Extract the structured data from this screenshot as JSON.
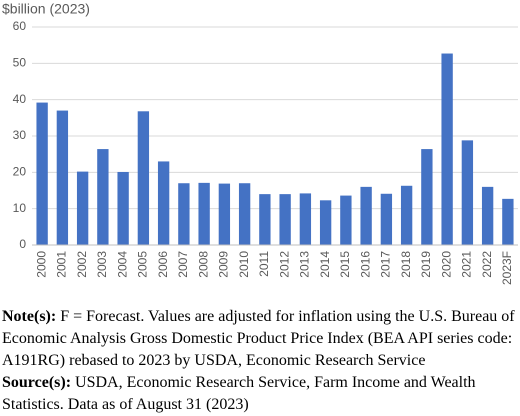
{
  "chart_data": {
    "type": "bar",
    "y_label": "$billion (2023)",
    "categories": [
      "2000",
      "2001",
      "2002",
      "2003",
      "2004",
      "2005",
      "2006",
      "2007",
      "2008",
      "2009",
      "2010",
      "2011",
      "2012",
      "2013",
      "2014",
      "2015",
      "2016",
      "2017",
      "2018",
      "2019",
      "2020",
      "2021",
      "2022",
      "2023F"
    ],
    "values": [
      39.2,
      37,
      20.2,
      26.4,
      20.1,
      36.8,
      23,
      17,
      17.1,
      16.9,
      17,
      14,
      14,
      14.2,
      12.3,
      13.6,
      16,
      14.1,
      16.3,
      26.4,
      52.7,
      28.8,
      16,
      12.7
    ],
    "color": "#4472c4",
    "ylim": [
      0,
      60
    ],
    "yticks": [
      0,
      10,
      20,
      30,
      40,
      50,
      60
    ],
    "grid": true
  },
  "notes": {
    "note_label": "Note(s):",
    "note_text": "F = Forecast. Values are adjusted for inflation using the U.S. Bureau of Economic Analysis Gross Domestic Product Price Index (BEA API series code: A191RG) rebased to 2023 by USDA, Economic Research Service",
    "source_label": "Source(s):",
    "source_text": "USDA, Economic Research Service, Farm Income and Wealth Statistics. Data as of August 31 (2023)"
  }
}
